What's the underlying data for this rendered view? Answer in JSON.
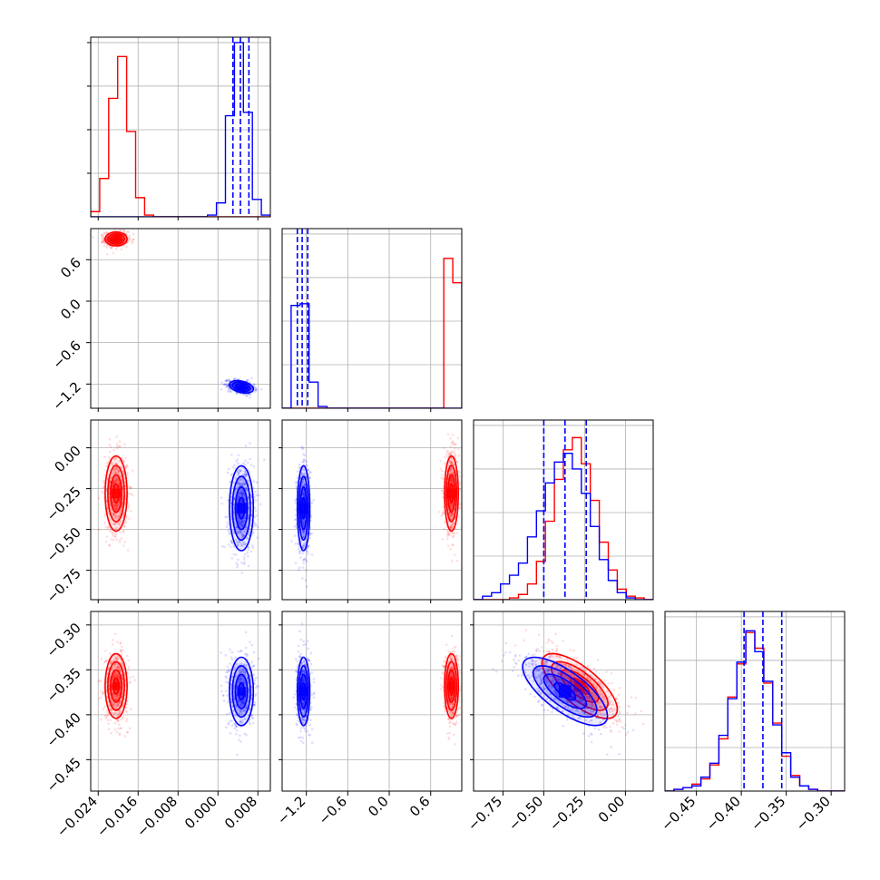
{
  "chart_data": {
    "type": "corner",
    "title": "",
    "grid": true,
    "colors": {
      "red": "#ff0000",
      "blue": "#0000ff",
      "grid": "#b0b0b0",
      "frame": "#000000"
    },
    "parameters": [
      {
        "xlim": [
          -0.0255,
          0.0105
        ],
        "ticks": [
          -0.024,
          -0.016,
          -0.008,
          0.0,
          0.008
        ],
        "tick_labels": [
          "−0.024",
          "−0.016",
          "−0.008",
          "0.000",
          "0.008"
        ]
      },
      {
        "xlim": [
          -1.55,
          1.05
        ],
        "ticks": [
          -1.2,
          -0.6,
          0.0,
          0.6
        ],
        "tick_labels": [
          "−1.2",
          "−0.6",
          "0.0",
          "0.6"
        ]
      },
      {
        "xlim": [
          -0.93,
          0.17
        ],
        "ticks": [
          -0.75,
          -0.5,
          -0.25,
          0.0
        ],
        "tick_labels": [
          "−0.75",
          "−0.50",
          "−0.25",
          "0.00"
        ]
      },
      {
        "xlim": [
          -0.485,
          -0.285
        ],
        "ticks": [
          -0.45,
          -0.4,
          -0.35,
          -0.3
        ],
        "tick_labels": [
          "−0.45",
          "−0.40",
          "−0.35",
          "−0.30"
        ]
      }
    ],
    "diagonal": [
      {
        "param": 0,
        "hist_height_max": 1.0,
        "series": [
          {
            "color": "red",
            "edges": [
              -0.0255,
              -0.0237,
              -0.0219,
              -0.0201,
              -0.0183,
              -0.0165,
              -0.0147,
              -0.0129,
              -0.0111,
              -0.0093,
              -0.0075,
              -0.0057,
              -0.0039,
              -0.0021,
              -0.0003,
              0.0015,
              0.0033,
              0.0051,
              0.0069,
              0.0087,
              0.0105
            ],
            "heights": [
              0.03,
              0.22,
              0.68,
              0.92,
              0.49,
              0.11,
              0.01,
              0,
              0,
              0,
              0,
              0,
              0,
              0,
              0,
              0,
              0,
              0,
              0,
              0
            ]
          },
          {
            "color": "blue",
            "edges": [
              -0.0255,
              -0.0237,
              -0.0219,
              -0.0201,
              -0.0183,
              -0.0165,
              -0.0147,
              -0.0129,
              -0.0111,
              -0.0093,
              -0.0075,
              -0.0057,
              -0.0039,
              -0.0021,
              -0.0003,
              0.0015,
              0.0033,
              0.0051,
              0.0069,
              0.0087,
              0.0105
            ],
            "heights": [
              0,
              0,
              0,
              0,
              0,
              0,
              0,
              0,
              0,
              0,
              0,
              0,
              0,
              0.01,
              0.08,
              0.58,
              1.0,
              0.6,
              0.1,
              0.01
            ]
          }
        ],
        "quantile_lines": [
          0.003,
          0.0045,
          0.0062
        ]
      },
      {
        "param": 1,
        "hist_height_max": 1.0,
        "series": [
          {
            "color": "red",
            "edges": [
              -1.55,
              -1.42,
              -1.29,
              -1.16,
              -1.03,
              -0.9,
              -0.77,
              -0.64,
              -0.51,
              -0.38,
              -0.25,
              -0.12,
              0.01,
              0.14,
              0.27,
              0.4,
              0.53,
              0.66,
              0.79,
              0.92,
              1.05
            ],
            "heights": [
              0,
              0,
              0,
              0,
              0,
              0,
              0,
              0,
              0,
              0,
              0,
              0,
              0,
              0,
              0,
              0,
              0,
              0,
              0.86,
              0.72
            ]
          },
          {
            "color": "blue",
            "edges": [
              -1.55,
              -1.42,
              -1.29,
              -1.16,
              -1.03,
              -0.9,
              -0.77,
              -0.64,
              -0.51,
              -0.38,
              -0.25,
              -0.12,
              0.01,
              0.14,
              0.27,
              0.4,
              0.53,
              0.66,
              0.79,
              0.92,
              1.05
            ],
            "heights": [
              0,
              0.59,
              0.6,
              0.15,
              0.01,
              0,
              0,
              0,
              0,
              0,
              0,
              0,
              0,
              0,
              0,
              0,
              0,
              0,
              0,
              0
            ]
          }
        ],
        "quantile_lines": [
          -1.33,
          -1.26,
          -1.18
        ]
      },
      {
        "param": 2,
        "hist_height_max": 1.0,
        "series": [
          {
            "color": "red",
            "edges": [
              -0.93,
              -0.875,
              -0.82,
              -0.765,
              -0.71,
              -0.655,
              -0.6,
              -0.545,
              -0.49,
              -0.435,
              -0.38,
              -0.325,
              -0.27,
              -0.215,
              -0.16,
              -0.105,
              -0.05,
              0.005,
              0.06,
              0.115,
              0.17
            ],
            "heights": [
              0,
              0,
              0,
              0,
              0.01,
              0.03,
              0.09,
              0.22,
              0.45,
              0.69,
              0.86,
              0.93,
              0.78,
              0.57,
              0.33,
              0.17,
              0.06,
              0.02,
              0.01,
              0
            ]
          },
          {
            "color": "blue",
            "edges": [
              -0.93,
              -0.875,
              -0.82,
              -0.765,
              -0.71,
              -0.655,
              -0.6,
              -0.545,
              -0.49,
              -0.435,
              -0.38,
              -0.325,
              -0.27,
              -0.215,
              -0.16,
              -0.105,
              -0.05,
              0.005,
              0.06,
              0.115,
              0.17
            ],
            "heights": [
              0,
              0.02,
              0.04,
              0.09,
              0.14,
              0.21,
              0.36,
              0.51,
              0.67,
              0.79,
              0.84,
              0.75,
              0.61,
              0.42,
              0.23,
              0.11,
              0.04,
              0.01,
              0,
              0
            ]
          }
        ],
        "quantile_lines": [
          -0.5,
          -0.37,
          -0.24
        ]
      },
      {
        "param": 3,
        "hist_height_max": 1.0,
        "series": [
          {
            "color": "red",
            "edges": [
              -0.485,
              -0.475,
              -0.465,
              -0.455,
              -0.445,
              -0.435,
              -0.425,
              -0.415,
              -0.405,
              -0.395,
              -0.385,
              -0.375,
              -0.365,
              -0.355,
              -0.345,
              -0.335,
              -0.325,
              -0.315,
              -0.305,
              -0.295,
              -0.285
            ],
            "heights": [
              0,
              0.01,
              0.02,
              0.04,
              0.07,
              0.15,
              0.3,
              0.54,
              0.73,
              0.91,
              0.82,
              0.62,
              0.39,
              0.2,
              0.09,
              0.03,
              0.01,
              0,
              0,
              0
            ]
          },
          {
            "color": "blue",
            "edges": [
              -0.485,
              -0.475,
              -0.465,
              -0.455,
              -0.445,
              -0.435,
              -0.425,
              -0.415,
              -0.405,
              -0.395,
              -0.385,
              -0.375,
              -0.365,
              -0.355,
              -0.345,
              -0.335,
              -0.325,
              -0.315,
              -0.305,
              -0.295,
              -0.285
            ],
            "heights": [
              0,
              0.01,
              0.02,
              0.03,
              0.08,
              0.16,
              0.32,
              0.53,
              0.74,
              0.92,
              0.8,
              0.63,
              0.38,
              0.22,
              0.08,
              0.03,
              0.01,
              0,
              0,
              0
            ]
          }
        ],
        "quantile_lines": [
          -0.397,
          -0.376,
          -0.355
        ]
      }
    ],
    "posteriors": [
      {
        "color": "red",
        "mean": [
          -0.0204,
          0.9,
          -0.28,
          -0.368
        ],
        "std": [
          0.0011,
          0.05,
          0.115,
          0.018
        ],
        "corr_2_3": -0.72
      },
      {
        "color": "blue",
        "mean": [
          0.0047,
          -1.24,
          -0.37,
          -0.374
        ],
        "std": [
          0.0012,
          0.045,
          0.13,
          0.019
        ],
        "corr_0_1": -0.35,
        "corr_2_3": -0.72
      }
    ],
    "contour_levels_sigma": [
      0.5,
      1.0,
      1.5,
      2.0
    ]
  }
}
